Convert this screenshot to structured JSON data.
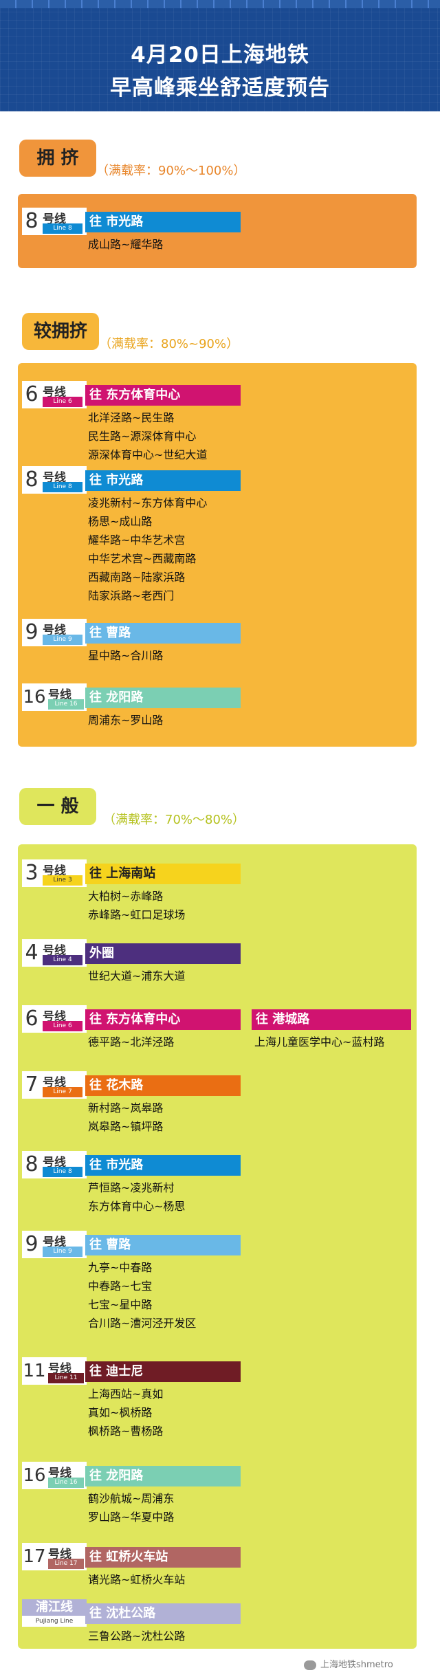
{
  "header": {
    "title_line1": "4月20日上海地铁",
    "title_line2": "早高峰乘坐舒适度预告"
  },
  "levels": {
    "crowded": {
      "label": "拥 挤",
      "note": "（满载率：90%～100%）",
      "color": "#f0953b"
    },
    "fairly_crowded": {
      "label": "较拥挤",
      "note": "（满载率：80%~90%）",
      "color": "#f7b73a"
    },
    "normal": {
      "label": "一 般",
      "note": "（满载率：70%～80%）",
      "color": "#dfe65c"
    }
  },
  "badge_colors": {
    "line3": "#f6d31d",
    "line4": "#4d2f7e",
    "line6": "#d01370",
    "line7": "#ea6e13",
    "line8": "#0f8bd3",
    "line9": "#69b8e7",
    "line11": "#6f1c25",
    "line16": "#7bcfb3",
    "line17": "#b16663",
    "pujiang": "#b1b1d6"
  },
  "crowded": {
    "line8": {
      "num": "8",
      "hx": "号线",
      "sub": "Line 8",
      "dir": "往  市光路",
      "segs": [
        "成山路~耀华路"
      ]
    }
  },
  "fairly_crowded": {
    "line6": {
      "num": "6",
      "hx": "号线",
      "sub": "Line 6",
      "dir": "往  东方体育中心",
      "segs": [
        "北洋泾路~民生路",
        "民生路~源深体育中心",
        "源深体育中心~世纪大道"
      ]
    },
    "line8": {
      "num": "8",
      "hx": "号线",
      "sub": "Line 8",
      "dir": "往  市光路",
      "segs": [
        "凌兆新村~东方体育中心",
        "杨思~成山路",
        "耀华路~中华艺术宫",
        "中华艺术宫~西藏南路",
        "西藏南路~陆家浜路",
        "陆家浜路~老西门"
      ]
    },
    "line9": {
      "num": "9",
      "hx": "号线",
      "sub": "Line 9",
      "dir": "往  曹路",
      "segs": [
        "星中路~合川路"
      ]
    },
    "line16": {
      "num": "16",
      "hx": "号线",
      "sub": "Line 16",
      "dir": "往  龙阳路",
      "segs": [
        "周浦东~罗山路"
      ]
    }
  },
  "normal": {
    "line3": {
      "num": "3",
      "hx": "号线",
      "sub": "Line 3",
      "dir": "往  上海南站",
      "segs": [
        "大柏树~赤峰路",
        "赤峰路~虹口足球场"
      ]
    },
    "line4": {
      "num": "4",
      "hx": "号线",
      "sub": "Line 4",
      "dir": "外圈",
      "segs": [
        "世纪大道~浦东大道"
      ]
    },
    "line6": {
      "num": "6",
      "hx": "号线",
      "sub": "Line 6",
      "dir": "往  东方体育中心",
      "segs": [
        "德平路~北洋泾路"
      ],
      "dir2": "往  港城路",
      "segs2": [
        "上海儿童医学中心~蓝村路"
      ]
    },
    "line7": {
      "num": "7",
      "hx": "号线",
      "sub": "Line 7",
      "dir": "往  花木路",
      "segs": [
        "新村路~岚皋路",
        "岚皋路~镇坪路"
      ]
    },
    "line8": {
      "num": "8",
      "hx": "号线",
      "sub": "Line 8",
      "dir": "往  市光路",
      "segs": [
        "芦恒路~凌兆新村",
        "东方体育中心~杨思"
      ]
    },
    "line9": {
      "num": "9",
      "hx": "号线",
      "sub": "Line 9",
      "dir": "往  曹路",
      "segs": [
        "九亭~中春路",
        "中春路~七宝",
        "七宝~星中路",
        "合川路~漕河泾开发区"
      ]
    },
    "line11": {
      "num": "11",
      "hx": "号线",
      "sub": "Line 11",
      "dir": "往  迪士尼",
      "segs": [
        "上海西站~真如",
        "真如~枫桥路",
        "枫桥路~曹杨路"
      ]
    },
    "line16": {
      "num": "16",
      "hx": "号线",
      "sub": "Line 16",
      "dir": "往  龙阳路",
      "segs": [
        "鹤沙航城~周浦东",
        "罗山路~华夏中路"
      ]
    },
    "line17": {
      "num": "17",
      "hx": "号线",
      "sub": "Line 17",
      "dir": "往  虹桥火车站",
      "segs": [
        "诸光路~虹桥火车站"
      ]
    },
    "pujiang": {
      "num": "浦江线",
      "sub": "Pujiang Line",
      "dir": "往  沈杜公路",
      "segs": [
        "三鲁公路~沈杜公路"
      ]
    }
  },
  "footer": {
    "watermark": "上海地铁shmetro"
  }
}
